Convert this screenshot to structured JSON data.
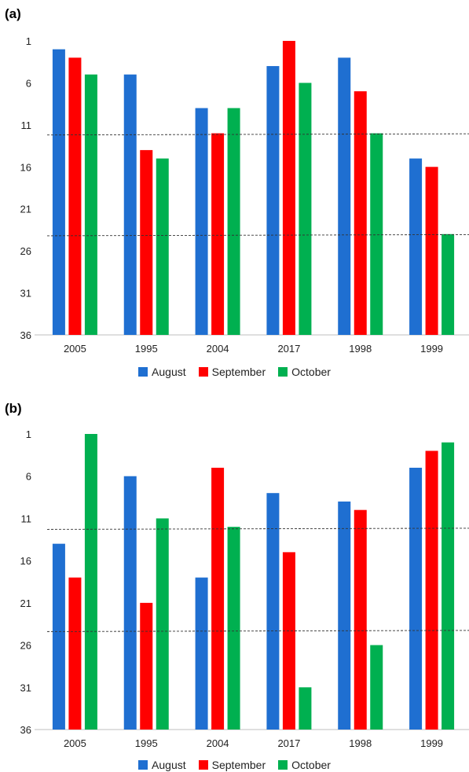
{
  "chart_data": [
    {
      "panel_label": "(a)",
      "type": "bar",
      "categories": [
        "2005",
        "1995",
        "2004",
        "2017",
        "1998",
        "1999"
      ],
      "series": [
        {
          "name": "August",
          "color": "#1f6fd1",
          "values": [
            2,
            5,
            9,
            4,
            3,
            15
          ]
        },
        {
          "name": "September",
          "color": "#ff0000",
          "values": [
            3,
            14,
            12,
            1,
            7,
            16
          ]
        },
        {
          "name": "October",
          "color": "#00b050",
          "values": [
            5,
            15,
            9,
            6,
            12,
            24
          ]
        }
      ],
      "y_axis": {
        "ticks": [
          "1",
          "6",
          "11",
          "16",
          "21",
          "26",
          "31",
          "36"
        ],
        "ylim": [
          1,
          36
        ],
        "inverted": true
      },
      "reference_lines": [
        12.2,
        24.2
      ],
      "legend_position": "bottom-center",
      "grid": false
    },
    {
      "panel_label": "(b)",
      "type": "bar",
      "categories": [
        "2005",
        "1995",
        "2004",
        "2017",
        "1998",
        "1999"
      ],
      "series": [
        {
          "name": "August",
          "color": "#1f6fd1",
          "values": [
            14,
            6,
            18,
            8,
            9,
            5
          ]
        },
        {
          "name": "September",
          "color": "#ff0000",
          "values": [
            18,
            21,
            5,
            15,
            10,
            3
          ]
        },
        {
          "name": "October",
          "color": "#00b050",
          "values": [
            1,
            11,
            12,
            31,
            26,
            2
          ]
        }
      ],
      "y_axis": {
        "ticks": [
          "1",
          "6",
          "11",
          "16",
          "21",
          "26",
          "31",
          "36"
        ],
        "ylim": [
          1,
          36
        ],
        "inverted": true
      },
      "reference_lines": [
        12.3,
        24.4
      ],
      "legend_position": "bottom-center",
      "grid": false
    }
  ]
}
